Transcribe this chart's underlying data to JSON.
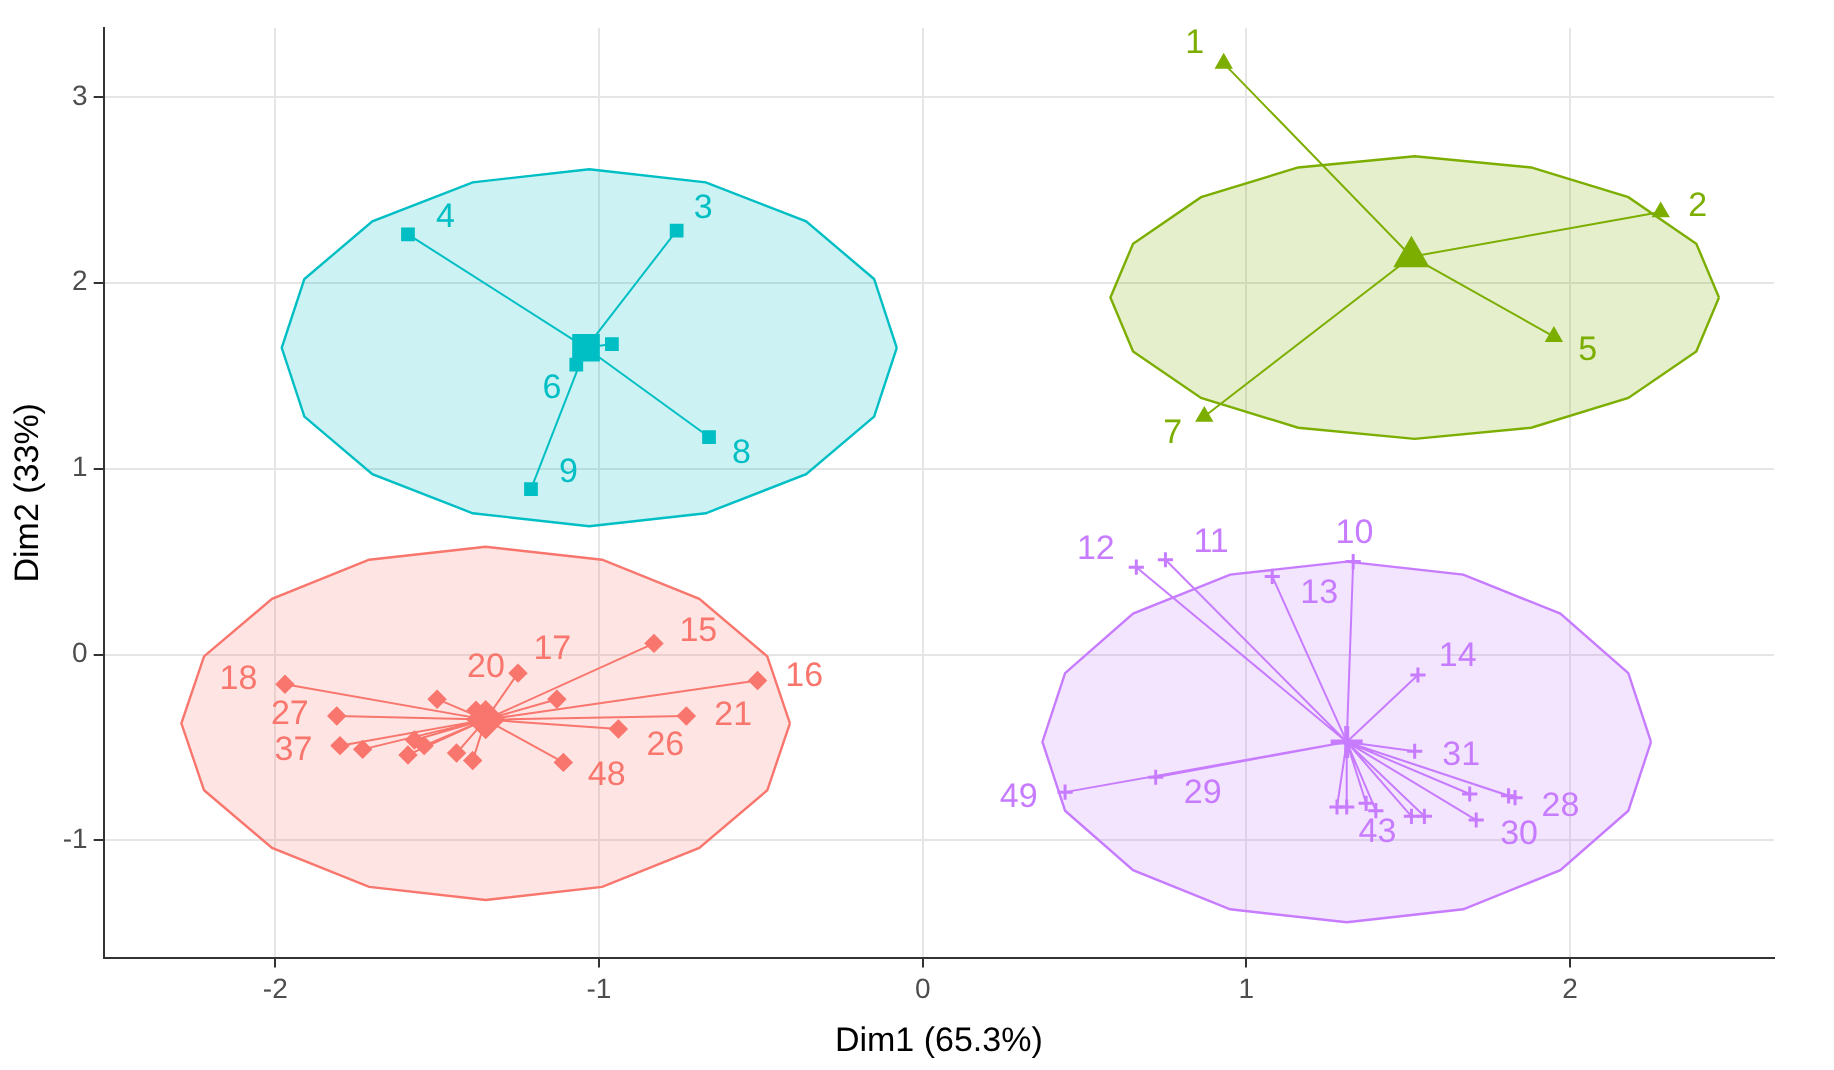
{
  "chart_data": {
    "type": "scatter",
    "xlabel": "Dim1 (65.3%)",
    "ylabel": "Dim2 (33%)",
    "xlim": [
      -2.53,
      2.63
    ],
    "ylim": [
      -1.63,
      3.37
    ],
    "xticks": [
      -2,
      -1,
      0,
      1,
      2
    ],
    "yticks": [
      -1,
      0,
      1,
      2,
      3
    ],
    "grid": true,
    "legend": false,
    "series": [
      {
        "color": "#f8766d",
        "marker": "diamond",
        "x": [
          -1.97,
          -1.81,
          -1.8,
          -1.73,
          -1.59,
          -1.57,
          -1.54,
          -1.5,
          -1.44,
          -1.39,
          -1.25,
          -1.13,
          -0.83,
          -0.51,
          -0.73,
          -0.94,
          -1.11,
          -1.38
        ],
        "values": [
          -0.16,
          -0.33,
          -0.49,
          -0.51,
          -0.54,
          -0.46,
          -0.49,
          -0.24,
          -0.53,
          -0.57,
          -0.1,
          -0.24,
          0.06,
          -0.14,
          -0.33,
          -0.4,
          -0.58,
          -0.3
        ]
      },
      {
        "color": "#7cae00",
        "marker": "triangle",
        "x": [
          0.93,
          2.28,
          1.95,
          0.87
        ],
        "values": [
          3.18,
          2.38,
          1.71,
          1.28
        ]
      },
      {
        "color": "#00bfc4",
        "marker": "square",
        "x": [
          -0.76,
          -1.59,
          -1.07,
          -0.96,
          -0.66,
          -1.21
        ],
        "values": [
          2.28,
          2.26,
          1.56,
          1.67,
          1.17,
          0.89
        ]
      },
      {
        "color": "#c77cff",
        "marker": "cross",
        "x": [
          0.66,
          0.75,
          1.08,
          1.33,
          1.53,
          1.52,
          1.83,
          1.81,
          1.71,
          1.55,
          1.51,
          0.72,
          0.44,
          1.28,
          1.31,
          1.4,
          1.37,
          1.69
        ],
        "values": [
          0.47,
          0.51,
          0.42,
          0.5,
          -0.11,
          -0.52,
          -0.77,
          -0.76,
          -0.89,
          -0.87,
          -0.87,
          -0.66,
          -0.74,
          -0.82,
          -0.82,
          -0.84,
          -0.8,
          -0.75
        ]
      },
      {
        "color": "#f8766d",
        "marker": "diamond",
        "x": [
          -1.35
        ],
        "values": [
          -0.35
        ]
      },
      {
        "color": "#7cae00",
        "marker": "triangle",
        "x": [
          1.51
        ],
        "values": [
          2.14
        ]
      },
      {
        "color": "#00bfc4",
        "marker": "square",
        "x": [
          -1.04
        ],
        "values": [
          1.65
        ]
      },
      {
        "color": "#c77cff",
        "marker": "cross",
        "x": [
          1.31
        ],
        "values": [
          -0.47
        ]
      },
      {
        "type": "line",
        "color": "#f8766d",
        "marker": "none",
        "x": [
          -1.35,
          -1.97,
          -1.35,
          -1.81,
          -1.35,
          -1.8,
          -1.35,
          -1.73,
          -1.35,
          -1.59,
          -1.35,
          -1.57,
          -1.35,
          -1.54,
          -1.35,
          -1.5,
          -1.35,
          -1.44,
          -1.35,
          -1.39,
          -1.35,
          -1.25,
          -1.35,
          -1.13,
          -1.35,
          -0.83,
          -1.35,
          -0.51,
          -1.35,
          -0.73,
          -1.35,
          -0.94,
          -1.35,
          -1.11,
          -1.35,
          -1.38
        ],
        "values": [
          -0.35,
          -0.16,
          -0.35,
          -0.33,
          -0.35,
          -0.49,
          -0.35,
          -0.51,
          -0.35,
          -0.54,
          -0.35,
          -0.46,
          -0.35,
          -0.49,
          -0.35,
          -0.24,
          -0.35,
          -0.53,
          -0.35,
          -0.57,
          -0.35,
          -0.1,
          -0.35,
          -0.24,
          -0.35,
          0.06,
          -0.35,
          -0.14,
          -0.35,
          -0.33,
          -0.35,
          -0.4,
          -0.35,
          -0.58,
          -0.35,
          -0.3
        ]
      },
      {
        "type": "line",
        "color": "#7cae00",
        "marker": "none",
        "x": [
          1.51,
          0.93,
          1.51,
          2.28,
          1.51,
          1.95,
          1.51,
          0.87
        ],
        "values": [
          2.14,
          3.18,
          2.14,
          2.38,
          2.14,
          1.71,
          2.14,
          1.28
        ]
      },
      {
        "type": "line",
        "color": "#00bfc4",
        "marker": "none",
        "x": [
          -1.04,
          -0.76,
          -1.04,
          -1.59,
          -1.04,
          -1.07,
          -1.04,
          -0.96,
          -1.04,
          -0.66,
          -1.04,
          -1.21
        ],
        "values": [
          1.65,
          2.28,
          1.65,
          2.26,
          1.65,
          1.56,
          1.65,
          1.67,
          1.65,
          1.17,
          1.65,
          0.89
        ]
      },
      {
        "type": "line",
        "color": "#c77cff",
        "marker": "none",
        "x": [
          1.31,
          0.66,
          1.31,
          0.75,
          1.31,
          1.08,
          1.31,
          1.33,
          1.31,
          1.53,
          1.31,
          1.52,
          1.31,
          1.83,
          1.31,
          1.81,
          1.31,
          1.71,
          1.31,
          1.55,
          1.31,
          1.51,
          1.31,
          0.72,
          1.31,
          0.44,
          1.31,
          1.28,
          1.31,
          1.31,
          1.31,
          1.4,
          1.31,
          1.37,
          1.31,
          1.69
        ],
        "values": [
          -0.47,
          0.47,
          -0.47,
          0.51,
          -0.47,
          0.42,
          -0.47,
          0.5,
          -0.47,
          -0.11,
          -0.47,
          -0.52,
          -0.47,
          -0.77,
          -0.47,
          -0.76,
          -0.47,
          -0.89,
          -0.47,
          -0.87,
          -0.47,
          -0.87,
          -0.47,
          -0.66,
          -0.47,
          -0.74,
          -0.47,
          -0.82,
          -0.47,
          -0.82,
          -0.47,
          -0.84,
          -0.47,
          -0.8,
          -0.47,
          -0.75
        ]
      },
      {
        "type": "area",
        "color": "#f8766d",
        "marker": "none",
        "x": [
          -0.41,
          -0.48,
          -0.69,
          -0.99,
          -1.35,
          -1.71,
          -2.01,
          -2.22,
          -2.29,
          -2.22,
          -2.01,
          -1.71,
          -1.35,
          -0.99,
          -0.69,
          -0.48
        ],
        "values": [
          -0.37,
          -0.01,
          0.3,
          0.51,
          0.58,
          0.51,
          0.3,
          -0.01,
          -0.37,
          -0.73,
          -1.04,
          -1.25,
          -1.32,
          -1.25,
          -1.04,
          -0.73
        ]
      },
      {
        "type": "area",
        "color": "#7cae00",
        "marker": "none",
        "x": [
          2.46,
          2.39,
          2.18,
          1.88,
          1.52,
          1.16,
          0.86,
          0.65,
          0.58,
          0.65,
          0.86,
          1.16,
          1.52,
          1.88,
          2.18,
          2.39
        ],
        "values": [
          1.92,
          2.21,
          2.46,
          2.62,
          2.68,
          2.62,
          2.46,
          2.21,
          1.92,
          1.63,
          1.38,
          1.22,
          1.16,
          1.22,
          1.38,
          1.63
        ]
      },
      {
        "type": "area",
        "color": "#00bfc4",
        "marker": "none",
        "x": [
          -0.08,
          -0.15,
          -0.36,
          -0.67,
          -1.03,
          -1.39,
          -1.7,
          -1.91,
          -1.98,
          -1.91,
          -1.7,
          -1.39,
          -1.03,
          -0.67,
          -0.36,
          -0.15
        ],
        "values": [
          1.65,
          2.02,
          2.33,
          2.54,
          2.61,
          2.54,
          2.33,
          2.02,
          1.65,
          1.28,
          0.97,
          0.76,
          0.69,
          0.76,
          0.97,
          1.28
        ]
      },
      {
        "type": "area",
        "color": "#c77cff",
        "marker": "none",
        "x": [
          2.25,
          2.18,
          1.97,
          1.67,
          1.31,
          0.95,
          0.65,
          0.44,
          0.37,
          0.44,
          0.65,
          0.95,
          1.31,
          1.67,
          1.97,
          2.18
        ],
        "values": [
          -0.47,
          -0.1,
          0.22,
          0.43,
          0.5,
          0.43,
          0.22,
          -0.1,
          -0.47,
          -0.84,
          -1.16,
          -1.37,
          -1.44,
          -1.37,
          -1.16,
          -0.84
        ]
      }
    ],
    "annotations": [
      {
        "text": "18",
        "x": -1.97,
        "y": -0.16
      },
      {
        "text": "27",
        "x": -1.81,
        "y": -0.33
      },
      {
        "text": "37",
        "x": -1.8,
        "y": -0.49
      },
      {
        "text": "17",
        "x": -1.25,
        "y": -0.1
      },
      {
        "text": "20",
        "x": -1.13,
        "y": -0.24
      },
      {
        "text": "15",
        "x": -0.83,
        "y": 0.06
      },
      {
        "text": "16",
        "x": -0.51,
        "y": -0.14
      },
      {
        "text": "21",
        "x": -0.73,
        "y": -0.33
      },
      {
        "text": "26",
        "x": -0.94,
        "y": -0.4
      },
      {
        "text": "48",
        "x": -1.11,
        "y": -0.58
      },
      {
        "text": "1",
        "x": 0.93,
        "y": 3.18
      },
      {
        "text": "2",
        "x": 2.28,
        "y": 2.38
      },
      {
        "text": "5",
        "x": 1.95,
        "y": 1.71
      },
      {
        "text": "7",
        "x": 0.87,
        "y": 1.28
      },
      {
        "text": "3",
        "x": -0.76,
        "y": 2.28
      },
      {
        "text": "4",
        "x": -1.59,
        "y": 2.26
      },
      {
        "text": "6",
        "x": -1.07,
        "y": 1.56
      },
      {
        "text": "8",
        "x": -0.66,
        "y": 1.17
      },
      {
        "text": "9",
        "x": -1.21,
        "y": 0.89
      },
      {
        "text": "12",
        "x": 0.66,
        "y": 0.47
      },
      {
        "text": "11",
        "x": 0.75,
        "y": 0.51
      },
      {
        "text": "13",
        "x": 1.08,
        "y": 0.42
      },
      {
        "text": "10",
        "x": 1.33,
        "y": 0.5
      },
      {
        "text": "14",
        "x": 1.53,
        "y": -0.11
      },
      {
        "text": "31",
        "x": 1.52,
        "y": -0.52
      },
      {
        "text": "28",
        "x": 1.83,
        "y": -0.77
      },
      {
        "text": "30",
        "x": 1.71,
        "y": -0.89
      },
      {
        "text": "43",
        "x": 1.55,
        "y": -0.87
      },
      {
        "text": "29",
        "x": 0.72,
        "y": -0.66
      },
      {
        "text": "49",
        "x": 0.44,
        "y": -0.74
      }
    ]
  }
}
